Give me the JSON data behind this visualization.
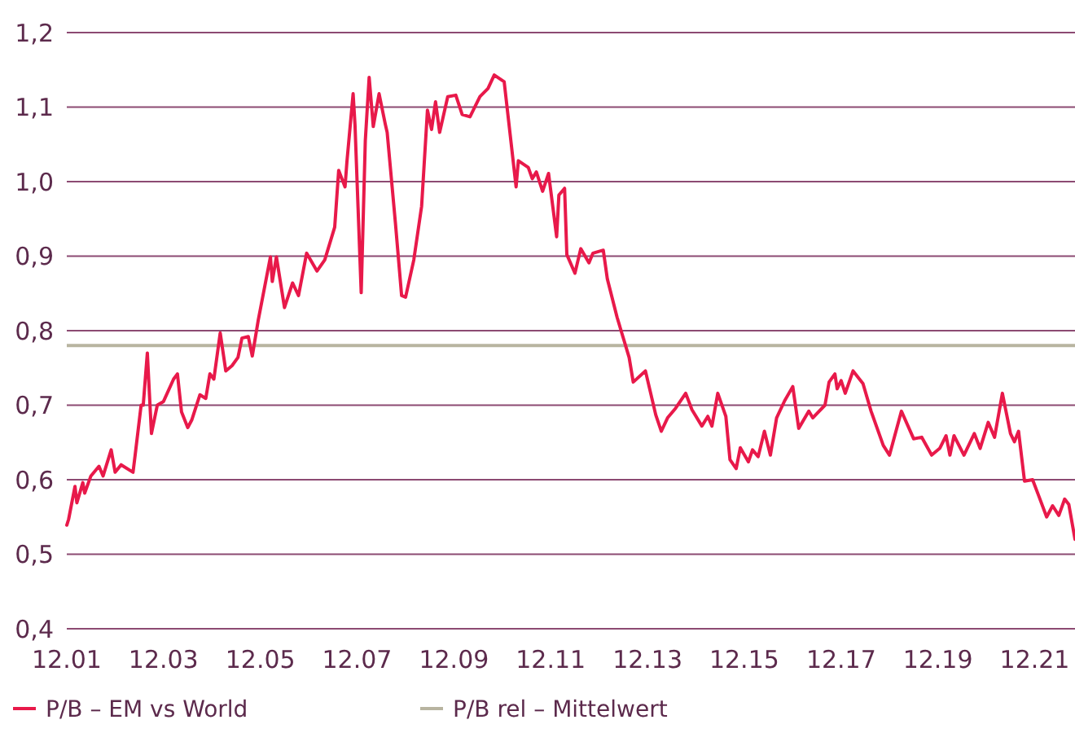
{
  "chart_data": {
    "type": "line",
    "legend": "bottom",
    "grid": "y",
    "line_style": "solid",
    "marker": "none",
    "xlim": [
      "2001-12-01",
      "2022-10-01"
    ],
    "xticks": [
      {
        "value": "2001-12",
        "label": "12.01"
      },
      {
        "value": "2003-12",
        "label": "12.03"
      },
      {
        "value": "2005-12",
        "label": "12.05"
      },
      {
        "value": "2007-12",
        "label": "12.07"
      },
      {
        "value": "2009-12",
        "label": "12.09"
      },
      {
        "value": "2011-12",
        "label": "12.11"
      },
      {
        "value": "2013-12",
        "label": "12.13"
      },
      {
        "value": "2015-12",
        "label": "12.15"
      },
      {
        "value": "2017-12",
        "label": "12.17"
      },
      {
        "value": "2019-12",
        "label": "12.19"
      },
      {
        "value": "2021-12",
        "label": "12.21"
      }
    ],
    "ylim": [
      0.4,
      1.2
    ],
    "yticks": [
      {
        "value": 0.4,
        "label": "0,4"
      },
      {
        "value": 0.5,
        "label": "0,5"
      },
      {
        "value": 0.6,
        "label": "0,6"
      },
      {
        "value": 0.7,
        "label": "0,7"
      },
      {
        "value": 0.8,
        "label": "0,8"
      },
      {
        "value": 0.9,
        "label": "0,9"
      },
      {
        "value": 1.0,
        "label": "1,0"
      },
      {
        "value": 1.1,
        "label": "1,1"
      },
      {
        "value": 1.2,
        "label": "1,2"
      }
    ],
    "series": [
      {
        "name": "P/B – EM vs World",
        "color": "#e8194a",
        "x": [
          "2001-12-01",
          "2001-12-15",
          "2002-02-01",
          "2002-02-15",
          "2002-04-01",
          "2002-04-15",
          "2002-06-01",
          "2002-08-01",
          "2002-09-01",
          "2002-11-01",
          "2002-12-01",
          "2003-01-15",
          "2003-04-15",
          "2003-05-01",
          "2003-06-15",
          "2003-07-01",
          "2003-08-01",
          "2003-09-01",
          "2003-10-15",
          "2003-12-01",
          "2004-02-15",
          "2004-03-15",
          "2004-04-15",
          "2004-06-01",
          "2004-07-01",
          "2004-09-01",
          "2004-10-15",
          "2004-11-15",
          "2004-12-15",
          "2005-02-01",
          "2005-03-15",
          "2005-05-01",
          "2005-06-15",
          "2005-07-15",
          "2005-09-01",
          "2005-10-01",
          "2005-11-15",
          "2006-02-15",
          "2006-03-01",
          "2006-04-01",
          "2006-06-01",
          "2006-08-01",
          "2006-09-15",
          "2006-11-15",
          "2007-02-01",
          "2007-04-01",
          "2007-06-15",
          "2007-07-15",
          "2007-09-01",
          "2007-09-15",
          "2007-11-01",
          "2007-11-15",
          "2008-01-01",
          "2008-02-01",
          "2008-03-01",
          "2008-04-01",
          "2008-05-15",
          "2008-07-01",
          "2008-07-15",
          "2008-09-15",
          "2008-11-01",
          "2008-12-01",
          "2009-02-01",
          "2009-04-01",
          "2009-05-15",
          "2009-06-15",
          "2009-07-15",
          "2009-08-15",
          "2009-10-15",
          "2009-12-15",
          "2010-02-01",
          "2010-04-01",
          "2010-06-15",
          "2010-08-15",
          "2010-10-01",
          "2010-12-15",
          "2011-03-15",
          "2011-04-01",
          "2011-06-15",
          "2011-07-15",
          "2011-08-15",
          "2011-10-01",
          "2011-11-15",
          "2012-01-15",
          "2012-02-01",
          "2012-03-15",
          "2012-04-01",
          "2012-06-01",
          "2012-07-15",
          "2012-09-15",
          "2012-10-15",
          "2013-01-01",
          "2013-02-01",
          "2013-04-15",
          "2013-07-15",
          "2013-08-15",
          "2013-11-15",
          "2014-02-01",
          "2014-03-15",
          "2014-05-01",
          "2014-07-01",
          "2014-09-15",
          "2014-11-01",
          "2015-01-15",
          "2015-03-01",
          "2015-04-01",
          "2015-05-15",
          "2015-07-15",
          "2015-08-15",
          "2015-10-01",
          "2015-11-01",
          "2016-01-01",
          "2016-02-01",
          "2016-03-15",
          "2016-05-01",
          "2016-06-15",
          "2016-08-01",
          "2016-10-01",
          "2016-12-01",
          "2017-01-15",
          "2017-04-01",
          "2017-05-01",
          "2017-08-01",
          "2017-09-01",
          "2017-10-15",
          "2017-11-01",
          "2017-12-01",
          "2018-01-01",
          "2018-03-01",
          "2018-05-15",
          "2018-07-15",
          "2018-10-15",
          "2018-12-01",
          "2019-03-01",
          "2019-06-01",
          "2019-08-01",
          "2019-10-15",
          "2019-12-15",
          "2020-02-01",
          "2020-03-01",
          "2020-04-01",
          "2020-06-15",
          "2020-09-01",
          "2020-10-15",
          "2020-12-15",
          "2021-02-01",
          "2021-04-01",
          "2021-06-01",
          "2021-07-01",
          "2021-08-01",
          "2021-09-15",
          "2021-11-15",
          "2022-01-01",
          "2022-03-01",
          "2022-04-15",
          "2022-06-01",
          "2022-07-15",
          "2022-08-15",
          "2022-10-01"
        ],
        "values": [
          0.539,
          0.547,
          0.591,
          0.569,
          0.596,
          0.582,
          0.605,
          0.618,
          0.605,
          0.64,
          0.61,
          0.62,
          0.61,
          0.633,
          0.7,
          0.7,
          0.77,
          0.662,
          0.7,
          0.705,
          0.735,
          0.742,
          0.691,
          0.67,
          0.68,
          0.714,
          0.709,
          0.742,
          0.735,
          0.797,
          0.746,
          0.753,
          0.764,
          0.79,
          0.792,
          0.766,
          0.814,
          0.899,
          0.866,
          0.899,
          0.831,
          0.864,
          0.847,
          0.904,
          0.88,
          0.895,
          0.939,
          1.015,
          0.993,
          1.026,
          1.118,
          1.077,
          0.851,
          1.055,
          1.14,
          1.074,
          1.118,
          1.077,
          1.066,
          0.945,
          0.847,
          0.845,
          0.895,
          0.967,
          1.096,
          1.07,
          1.107,
          1.066,
          1.114,
          1.116,
          1.09,
          1.087,
          1.114,
          1.125,
          1.143,
          1.134,
          0.993,
          1.028,
          1.019,
          1.004,
          1.013,
          0.987,
          1.011,
          0.926,
          0.982,
          0.991,
          0.902,
          0.877,
          0.91,
          0.891,
          0.904,
          0.908,
          0.869,
          0.818,
          0.764,
          0.731,
          0.746,
          0.687,
          0.665,
          0.683,
          0.696,
          0.716,
          0.694,
          0.672,
          0.685,
          0.672,
          0.716,
          0.685,
          0.627,
          0.615,
          0.643,
          0.624,
          0.64,
          0.631,
          0.665,
          0.633,
          0.683,
          0.706,
          0.725,
          0.669,
          0.692,
          0.683,
          0.7,
          0.731,
          0.742,
          0.722,
          0.733,
          0.716,
          0.746,
          0.729,
          0.692,
          0.646,
          0.633,
          0.692,
          0.655,
          0.657,
          0.633,
          0.642,
          0.659,
          0.633,
          0.659,
          0.633,
          0.662,
          0.642,
          0.677,
          0.657,
          0.716,
          0.662,
          0.651,
          0.665,
          0.598,
          0.6,
          0.578,
          0.55,
          0.565,
          0.552,
          0.574,
          0.567,
          0.52
        ]
      }
    ],
    "ref_lines": [
      {
        "axis": "y",
        "value": 0.78,
        "label": "P/B rel – Mittelwert",
        "color": "#b8b4a0"
      }
    ]
  }
}
